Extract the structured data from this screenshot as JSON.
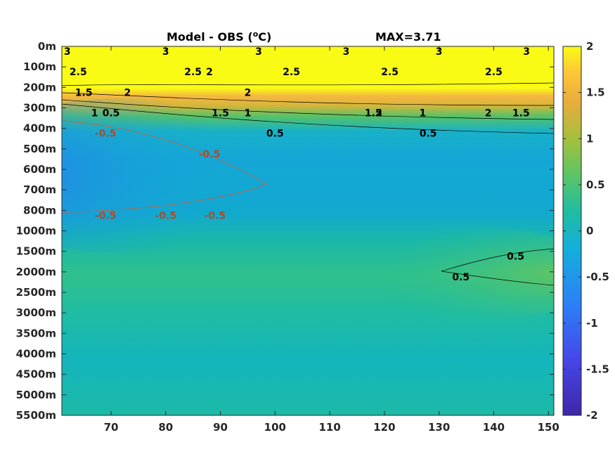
{
  "chart_data": {
    "type": "heatmap",
    "title_left": "Model - OBS (",
    "title_unit_sup": "o",
    "title_unit_end": "C)",
    "title_right": "MAX=3.71",
    "x_ticks": [
      "70",
      "80",
      "90",
      "100",
      "110",
      "120",
      "130",
      "140",
      "150"
    ],
    "x_tick_values": [
      70,
      80,
      90,
      100,
      110,
      120,
      130,
      140,
      150
    ],
    "xlim": [
      61,
      151
    ],
    "y_ticks": [
      "0m",
      "100m",
      "200m",
      "300m",
      "400m",
      "500m",
      "600m",
      "700m",
      "800m",
      "1000m",
      "1500m",
      "2000m",
      "2500m",
      "3000m",
      "3500m",
      "4000m",
      "4500m",
      "5000m",
      "5500m"
    ],
    "colorbar": {
      "ticks": [
        "2",
        "1.5",
        "1",
        "0.5",
        "0",
        "-0.5",
        "-1",
        "-1.5",
        "-2"
      ],
      "tick_values": [
        2,
        1.5,
        1,
        0.5,
        0,
        -0.5,
        -1,
        -1.5,
        -2
      ],
      "range": [
        -2,
        2
      ],
      "colormap": "parula"
    },
    "contour_labels": [
      {
        "text": "3",
        "x": 62,
        "depth": "0m",
        "color": "#000000"
      },
      {
        "text": "3",
        "x": 80,
        "depth": "0m",
        "color": "#000000"
      },
      {
        "text": "3",
        "x": 97,
        "depth": "0m",
        "color": "#000000"
      },
      {
        "text": "3",
        "x": 113,
        "depth": "0m",
        "color": "#000000"
      },
      {
        "text": "3",
        "x": 130,
        "depth": "0m",
        "color": "#000000"
      },
      {
        "text": "3",
        "x": 146,
        "depth": "0m",
        "color": "#000000"
      },
      {
        "text": "2.5",
        "x": 64,
        "depth": "100m",
        "color": "#000000"
      },
      {
        "text": "2.5",
        "x": 85,
        "depth": "100m",
        "color": "#000000"
      },
      {
        "text": "2.5",
        "x": 103,
        "depth": "100m",
        "color": "#000000"
      },
      {
        "text": "2.5",
        "x": 121,
        "depth": "100m",
        "color": "#000000"
      },
      {
        "text": "2.5",
        "x": 140,
        "depth": "100m",
        "color": "#000000"
      },
      {
        "text": "2",
        "x": 88,
        "depth": "100m",
        "color": "#000000"
      },
      {
        "text": "1.5",
        "x": 65,
        "depth": "200m",
        "color": "#000000"
      },
      {
        "text": "2",
        "x": 73,
        "depth": "200m",
        "color": "#000000"
      },
      {
        "text": "2",
        "x": 95,
        "depth": "200m",
        "color": "#000000"
      },
      {
        "text": "1",
        "x": 67,
        "depth": "300m",
        "color": "#000000"
      },
      {
        "text": "1.5",
        "x": 90,
        "depth": "300m",
        "color": "#000000"
      },
      {
        "text": "2",
        "x": 119,
        "depth": "300m",
        "color": "#000000"
      },
      {
        "text": "2",
        "x": 139,
        "depth": "300m",
        "color": "#000000"
      },
      {
        "text": "0.5",
        "x": 70,
        "depth": "300m",
        "color": "#000000"
      },
      {
        "text": "1",
        "x": 95,
        "depth": "300m",
        "color": "#000000"
      },
      {
        "text": "1.5",
        "x": 118,
        "depth": "300m",
        "color": "#000000"
      },
      {
        "text": "1",
        "x": 127,
        "depth": "300m",
        "color": "#000000"
      },
      {
        "text": "1.5",
        "x": 145,
        "depth": "300m",
        "color": "#000000"
      },
      {
        "text": "0.5",
        "x": 100,
        "depth": "400m",
        "color": "#000000"
      },
      {
        "text": "0.5",
        "x": 128,
        "depth": "400m",
        "color": "#000000"
      },
      {
        "text": "-0.5",
        "x": 69,
        "depth": "400m",
        "color": "#a05030"
      },
      {
        "text": "-0.5",
        "x": 88,
        "depth": "500m",
        "color": "#a05030"
      },
      {
        "text": "-0.5",
        "x": 69,
        "depth": "800m",
        "color": "#a05030"
      },
      {
        "text": "-0.5",
        "x": 80,
        "depth": "800m",
        "color": "#a05030"
      },
      {
        "text": "-0.5",
        "x": 89,
        "depth": "800m",
        "color": "#a05030"
      },
      {
        "text": "0.5",
        "x": 134,
        "depth": "2000m",
        "color": "#000000"
      },
      {
        "text": "0.5",
        "x": 144,
        "depth": "1500m",
        "color": "#000000"
      }
    ]
  }
}
